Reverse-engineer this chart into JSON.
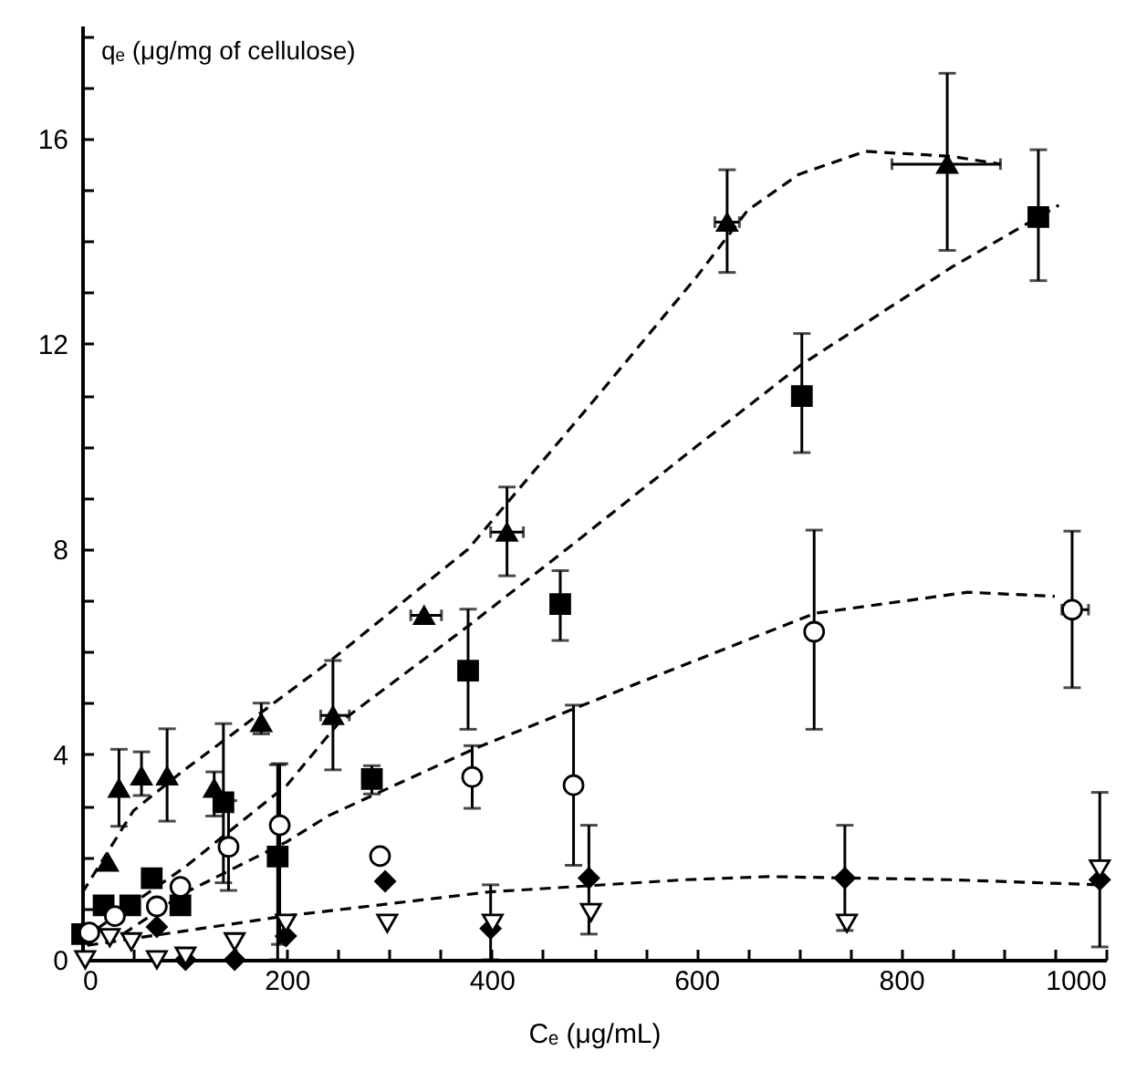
{
  "chart_data": {
    "type": "scatter",
    "xlabel": "Cₑ (μg/mL)",
    "ylabel": "qₑ (μg/mg of cellulose)",
    "xlim": [
      0,
      1000
    ],
    "ylim": [
      0,
      18.2
    ],
    "xticks": [
      0,
      {
        "value": 50,
        "label": null
      },
      {
        "value": 100,
        "label": null
      },
      {
        "value": 150,
        "label": null
      },
      200,
      {
        "value": 250,
        "label": null
      },
      {
        "value": 300,
        "label": null
      },
      {
        "value": 350,
        "label": null
      },
      400,
      {
        "value": 450,
        "label": null
      },
      {
        "value": 500,
        "label": null
      },
      {
        "value": 550,
        "label": null
      },
      600,
      {
        "value": 650,
        "label": null
      },
      {
        "value": 700,
        "label": null
      },
      {
        "value": 750,
        "label": null
      },
      800,
      {
        "value": 850,
        "label": null
      },
      {
        "value": 900,
        "label": null
      },
      {
        "value": 950,
        "label": null
      },
      1000
    ],
    "yticks": [
      0,
      {
        "value": 1,
        "label": null
      },
      {
        "value": 2,
        "label": null
      },
      {
        "value": 3,
        "label": null
      },
      4,
      {
        "value": 5,
        "label": null
      },
      {
        "value": 6,
        "label": null
      },
      {
        "value": 7,
        "label": null
      },
      8,
      {
        "value": 9,
        "label": null
      },
      {
        "value": 10,
        "label": null
      },
      {
        "value": 11,
        "label": null
      },
      12,
      {
        "value": 13,
        "label": null
      },
      {
        "value": 14,
        "label": null
      },
      {
        "value": 15,
        "label": null
      },
      16,
      {
        "value": 17,
        "label": null
      },
      {
        "value": 18,
        "label": null
      }
    ],
    "grid": false,
    "series": [
      {
        "type": "line",
        "line_style": "dashed",
        "marker": "none",
        "color": "#000000",
        "x": [
          0,
          50,
          100,
          241,
          377,
          500,
          600,
          650,
          700,
          765,
          850,
          897
        ],
        "values": [
          1.3,
          2.9,
          3.7,
          5.8,
          8.0,
          10.9,
          13.3,
          14.6,
          15.3,
          15.75,
          15.65,
          15.5
        ]
      },
      {
        "type": "line",
        "line_style": "dashed",
        "marker": "none",
        "color": "#000000",
        "x": [
          0,
          100,
          200,
          250,
          377,
          467,
          600,
          703,
          850,
          954
        ],
        "values": [
          0.4,
          1.8,
          3.4,
          4.6,
          6.5,
          7.9,
          10.0,
          11.6,
          13.5,
          14.7
        ]
      },
      {
        "type": "line",
        "line_style": "dashed",
        "marker": "none",
        "color": "#000000",
        "x": [
          40,
          100,
          200,
          241,
          383,
          538,
          716,
          865,
          950
        ],
        "values": [
          0.5,
          1.3,
          2.3,
          2.81,
          4.11,
          5.35,
          6.75,
          7.16,
          7.08
        ]
      },
      {
        "type": "line",
        "line_style": "dashed",
        "marker": "none",
        "color": "#000000",
        "x": [
          5,
          198,
          397,
          590,
          670,
          847,
          993
        ],
        "values": [
          0.28,
          0.85,
          1.32,
          1.56,
          1.62,
          1.56,
          1.46
        ]
      },
      {
        "marker": "triangle",
        "color": "#000000",
        "x": [
          25,
          36,
          58,
          83,
          129,
          175,
          245,
          334,
          415,
          630,
          845
        ],
        "values": [
          1.9,
          3.34,
          3.58,
          3.58,
          3.34,
          4.62,
          4.76,
          6.71,
          8.33,
          14.37,
          15.5
        ],
        "errors": [
          null,
          [
            2.6,
            4.1
          ],
          [
            3.2,
            4.05
          ],
          [
            2.7,
            4.5
          ],
          [
            2.8,
            3.66
          ],
          [
            4.4,
            5.0
          ],
          [
            3.7,
            5.83
          ],
          null,
          [
            7.48,
            9.21
          ],
          [
            13.39,
            15.39
          ],
          [
            13.82,
            17.27
          ]
        ],
        "xerrors": [
          null,
          null,
          null,
          null,
          null,
          null,
          [
            233,
            261
          ],
          [
            321,
            351
          ],
          [
            399,
            431
          ],
          [
            618,
            642
          ],
          [
            791,
            897
          ]
        ]
      },
      {
        "marker": "square",
        "color": "#000000",
        "x": [
          0,
          21,
          47,
          68,
          96,
          138,
          191,
          283,
          377,
          467,
          703,
          934
        ],
        "values": [
          0.5,
          1.06,
          1.06,
          1.59,
          1.06,
          3.07,
          2.01,
          3.52,
          5.63,
          6.93,
          10.98,
          14.47
        ],
        "errors": [
          null,
          null,
          null,
          null,
          null,
          [
            1.5,
            4.6
          ],
          [
            0,
            3.8
          ],
          [
            3.23,
            3.78
          ],
          [
            4.49,
            6.83
          ],
          [
            6.22,
            7.58
          ],
          [
            9.88,
            12.2
          ],
          [
            13.23,
            15.78
          ]
        ]
      },
      {
        "marker": "circle",
        "color": "#ffffff",
        "x": [
          7,
          32,
          73,
          96,
          143,
          193,
          291,
          381,
          480,
          715,
          967
        ],
        "values": [
          0.53,
          0.85,
          1.04,
          1.42,
          2.2,
          2.62,
          2.02,
          3.56,
          3.4,
          6.39,
          6.82
        ],
        "errors": [
          null,
          null,
          null,
          null,
          [
            1.35,
            3.1
          ],
          [
            0.3,
            3.82
          ],
          null,
          [
            2.95,
            4.17
          ],
          [
            1.84,
            4.96
          ],
          [
            4.49,
            8.37
          ],
          [
            5.3,
            8.35
          ]
        ],
        "xerrors": [
          null,
          null,
          null,
          null,
          null,
          null,
          null,
          null,
          null,
          null,
          [
            957,
            983
          ]
        ]
      },
      {
        "marker": "diamond",
        "color": "#000000",
        "x": [
          73,
          101,
          149,
          199,
          296,
          399,
          495,
          745,
          994
        ],
        "values": [
          0.64,
          0,
          0,
          0.46,
          1.53,
          0.61,
          1.59,
          1.59,
          1.56
        ],
        "errors": [
          null,
          null,
          null,
          null,
          null,
          [
            0,
            1.46
          ],
          [
            0.5,
            2.62
          ],
          [
            0.57,
            2.62
          ],
          [
            0.25,
            3.26
          ]
        ]
      },
      {
        "marker": "triangle-down",
        "color": "#ffffff",
        "x": [
          3,
          27,
          48,
          73,
          101,
          149,
          199,
          298,
          401,
          497,
          747,
          994
        ],
        "values": [
          0,
          0.43,
          0.35,
          0,
          0.07,
          0.35,
          0.71,
          0.71,
          0.71,
          0.92,
          0.71,
          1.77
        ]
      }
    ]
  }
}
